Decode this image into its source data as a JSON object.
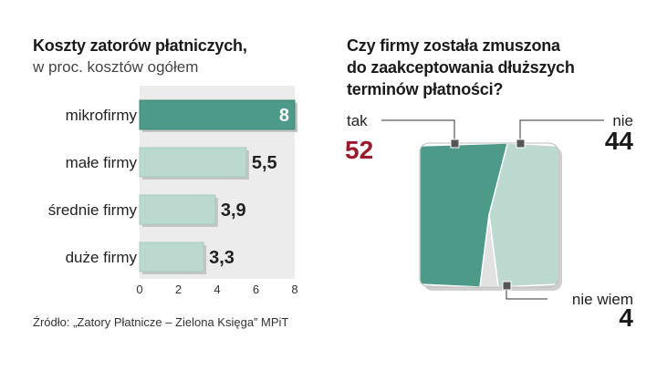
{
  "left_chart": {
    "title": "Koszty zatorów płatniczych,",
    "subtitle": "w proc. kosztów ogółem",
    "source": "Źródło: „Zatory Płatnicze – Zielona Księga” MPiT"
  },
  "right_chart": {
    "title_line1": "Czy firmy została zmuszona",
    "title_line2": "do zaakceptowania dłuższych",
    "title_line3": "terminów płatności?"
  },
  "colors": {
    "dark_bar": "#4e9a88",
    "light_bar": "#bcd9d0",
    "panel": "#ececec",
    "accent_red": "#9b1b2c"
  },
  "chart_data": [
    {
      "type": "bar",
      "orientation": "horizontal",
      "categories": [
        "mikrofirmy",
        "małe firmy",
        "średnie firmy",
        "duże firmy"
      ],
      "values": [
        8,
        5.5,
        3.9,
        3.3
      ],
      "value_labels": [
        "8",
        "5,5",
        "3,9",
        "3,3"
      ],
      "xlim": [
        0,
        8
      ],
      "xticks": [
        "0",
        "2",
        "4",
        "6",
        "8"
      ],
      "grid": false
    },
    {
      "type": "pie",
      "slices": [
        {
          "label": "tak",
          "value": 52,
          "value_label": "52",
          "color": "#4e9a88"
        },
        {
          "label": "nie",
          "value": 44,
          "value_label": "44",
          "color": "#bcd9d0"
        },
        {
          "label": "nie wiem",
          "value": 4,
          "value_label": "4",
          "color": "#e2e2e2"
        }
      ]
    }
  ]
}
